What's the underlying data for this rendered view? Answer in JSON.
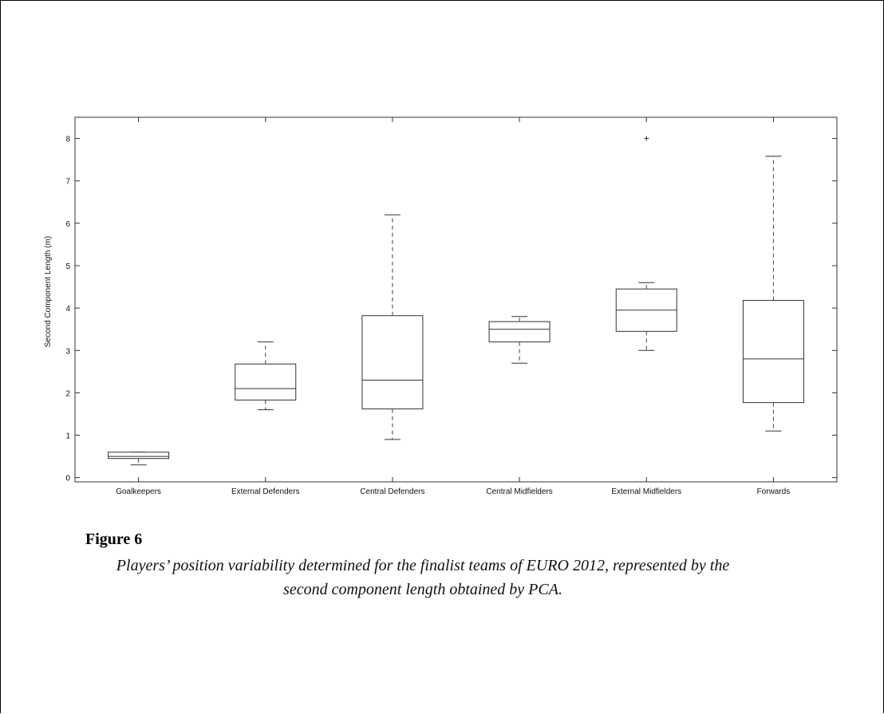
{
  "figure": {
    "title": "Figure 6",
    "caption": "Players’ position variability determined for the finalist teams of EURO 2012, represented by the second component length obtained by PCA."
  },
  "chart_data": {
    "type": "boxplot",
    "ylabel": "Second Component Length (m)",
    "xlabel": "",
    "ylim": [
      -0.1,
      8.5
    ],
    "yticks": [
      0,
      1,
      2,
      3,
      4,
      5,
      6,
      7,
      8
    ],
    "grid": false,
    "categories": [
      "Goalkeepers",
      "External Defenders",
      "Central Defenders",
      "Central Midfielders",
      "External Midfielders",
      "Forwards"
    ],
    "boxes": [
      {
        "category": "Goalkeepers",
        "whisker_low": 0.3,
        "q1": 0.45,
        "median": 0.5,
        "q3": 0.6,
        "whisker_high": 0.6,
        "outliers": []
      },
      {
        "category": "External Defenders",
        "whisker_low": 1.6,
        "q1": 1.83,
        "median": 2.1,
        "q3": 2.68,
        "whisker_high": 3.2,
        "outliers": []
      },
      {
        "category": "Central Defenders",
        "whisker_low": 0.9,
        "q1": 1.62,
        "median": 2.3,
        "q3": 3.82,
        "whisker_high": 6.2,
        "outliers": []
      },
      {
        "category": "Central Midfielders",
        "whisker_low": 2.7,
        "q1": 3.2,
        "median": 3.5,
        "q3": 3.68,
        "whisker_high": 3.8,
        "outliers": []
      },
      {
        "category": "External Midfielders",
        "whisker_low": 3.0,
        "q1": 3.45,
        "median": 3.95,
        "q3": 4.45,
        "whisker_high": 4.6,
        "outliers": [
          8.0
        ]
      },
      {
        "category": "Forwards",
        "whisker_low": 1.1,
        "q1": 1.77,
        "median": 2.8,
        "q3": 4.18,
        "whisker_high": 7.58,
        "outliers": []
      }
    ]
  }
}
